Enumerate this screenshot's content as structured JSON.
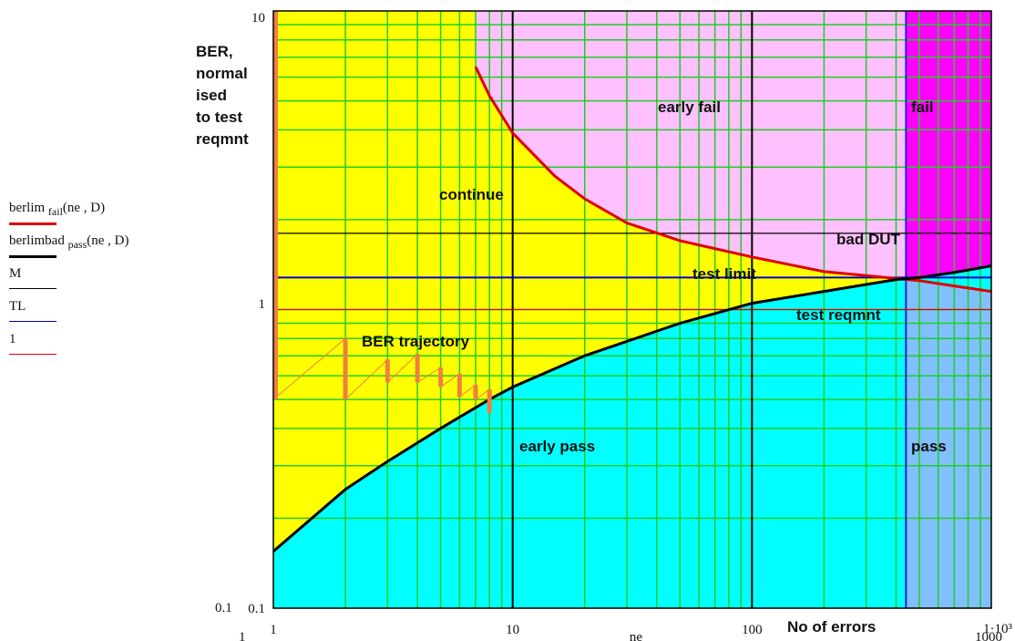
{
  "chart_data": {
    "type": "line",
    "x_scale": "log",
    "y_scale": "log",
    "xlim": [
      1,
      1000
    ],
    "ylim": [
      0.1,
      10
    ],
    "grid": true,
    "x_tick_labels": [
      "1",
      "10",
      "100"
    ],
    "x_axis_end_label": "1·10³",
    "y_tick_labels": [
      "10",
      "1",
      "0.1"
    ],
    "y_min_extra_label": "0.1",
    "xlabel": "No of errors",
    "x_range_under_labels": {
      "left": "1",
      "var": "ne",
      "right": "1000"
    },
    "ylabel_lines": [
      "BER,",
      "normal",
      "ised",
      "to test",
      "reqmnt"
    ],
    "regions": [
      {
        "name": "continue",
        "color": "#ffff00"
      },
      {
        "name": "early fail",
        "color": "#ffc0ff"
      },
      {
        "name": "fail",
        "color": "#ff00ff"
      },
      {
        "name": "early pass",
        "color": "#00ffff"
      },
      {
        "name": "pass",
        "color": "#80c0ff"
      }
    ],
    "annotations": [
      "continue",
      "early fail",
      "fail",
      "bad DUT",
      "test limit",
      "test reqmnt",
      "early pass",
      "pass",
      "BER trajectory"
    ],
    "series": [
      {
        "name": "berlim_fail(ne,D)",
        "color": "#e00000",
        "x": [
          7,
          8,
          10,
          15,
          20,
          30,
          50,
          100,
          200,
          300,
          400,
          500,
          700,
          1000
        ],
        "y": [
          6.5,
          5.2,
          3.9,
          2.8,
          2.35,
          1.95,
          1.7,
          1.5,
          1.34,
          1.3,
          1.27,
          1.25,
          1.2,
          1.15
        ]
      },
      {
        "name": "berlimbad_pass(ne,D)",
        "color": "#000000",
        "x": [
          1,
          2,
          3,
          5,
          8,
          10,
          20,
          50,
          100,
          200,
          400,
          500,
          700,
          1000
        ],
        "y": [
          0.155,
          0.25,
          0.31,
          0.4,
          0.5,
          0.55,
          0.7,
          0.9,
          1.05,
          1.15,
          1.26,
          1.28,
          1.33,
          1.4
        ]
      },
      {
        "name": "M",
        "color": "#000000",
        "constant": 1.8
      },
      {
        "name": "TL",
        "color": "#0000cc",
        "constant": 1.28
      },
      {
        "name": "1",
        "color": "#e00000",
        "constant": 1.0
      },
      {
        "name": "BER trajectory",
        "color": "#f08040",
        "x": [
          1,
          2,
          2,
          3,
          3,
          4,
          4,
          5,
          5,
          6,
          6,
          7,
          7,
          8,
          8
        ],
        "y": [
          0.5,
          0.8,
          0.5,
          0.68,
          0.57,
          0.71,
          0.57,
          0.64,
          0.55,
          0.61,
          0.51,
          0.56,
          0.5,
          0.54,
          0.45
        ]
      }
    ],
    "fail_start_ne": 440
  },
  "legend": {
    "items": [
      {
        "pre": "berlim ",
        "sub": "fail",
        "post": "(ne , D)",
        "color": "#e00000",
        "width": 3
      },
      {
        "pre": "berlimbad ",
        "sub": "pass",
        "post": "(ne , D)",
        "color": "#000000",
        "width": 3
      },
      {
        "pre": "M",
        "sub": "",
        "post": "",
        "color": "#000000",
        "width": 1
      },
      {
        "pre": "TL",
        "sub": "",
        "post": "",
        "color": "#0000cc",
        "width": 1
      },
      {
        "pre": "1",
        "sub": "",
        "post": "",
        "color": "#e00000",
        "width": 1
      }
    ]
  }
}
